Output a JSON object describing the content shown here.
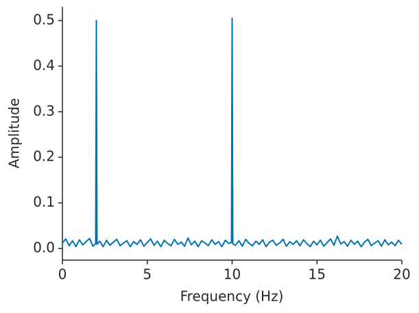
{
  "chart_data": {
    "type": "line",
    "xlabel": "Frequency (Hz)",
    "ylabel": "Amplitude",
    "color": "#0173b2",
    "xlim": [
      0,
      20
    ],
    "ylim": [
      -0.0256,
      0.53
    ],
    "xticks": [
      0,
      5,
      10,
      15,
      20
    ],
    "yticks": [
      {
        "value": 0,
        "label": "0.0"
      },
      0.1,
      0.2,
      0.3,
      0.4,
      0.5
    ],
    "x": [
      0,
      0.2,
      0.4,
      0.6,
      0.8,
      1,
      1.2,
      1.4,
      1.6,
      1.8,
      1.96,
      2,
      2.04,
      2.2,
      2.4,
      2.6,
      2.8,
      3,
      3.2,
      3.4,
      3.6,
      3.8,
      4,
      4.2,
      4.4,
      4.6,
      4.8,
      5,
      5.2,
      5.4,
      5.6,
      5.8,
      6,
      6.2,
      6.4,
      6.6,
      6.8,
      7,
      7.2,
      7.4,
      7.6,
      7.8,
      8,
      8.2,
      8.4,
      8.6,
      8.8,
      9,
      9.2,
      9.4,
      9.6,
      9.8,
      9.96,
      10,
      10.04,
      10.2,
      10.4,
      10.6,
      10.8,
      11,
      11.2,
      11.4,
      11.6,
      11.8,
      12,
      12.2,
      12.4,
      12.6,
      12.8,
      13,
      13.2,
      13.4,
      13.6,
      13.8,
      14,
      14.2,
      14.4,
      14.6,
      14.8,
      15,
      15.2,
      15.4,
      15.6,
      15.8,
      16,
      16.2,
      16.4,
      16.6,
      16.8,
      17,
      17.2,
      17.4,
      17.6,
      17.8,
      18,
      18.2,
      18.4,
      18.6,
      18.8,
      19,
      19.2,
      19.4,
      19.6,
      19.8,
      20
    ],
    "values": [
      0.012,
      0.021,
      0.006,
      0.017,
      0.004,
      0.019,
      0.008,
      0.015,
      0.022,
      0.005,
      0.011,
      0.5,
      0.009,
      0.016,
      0.004,
      0.018,
      0.007,
      0.014,
      0.02,
      0.006,
      0.012,
      0.017,
      0.004,
      0.015,
      0.009,
      0.019,
      0.005,
      0.013,
      0.021,
      0.007,
      0.016,
      0.004,
      0.018,
      0.011,
      0.006,
      0.02,
      0.009,
      0.014,
      0.005,
      0.023,
      0.008,
      0.016,
      0.004,
      0.017,
      0.012,
      0.006,
      0.019,
      0.009,
      0.015,
      0.004,
      0.018,
      0.011,
      0.013,
      0.505,
      0.01,
      0.007,
      0.017,
      0.005,
      0.02,
      0.011,
      0.006,
      0.016,
      0.009,
      0.019,
      0.004,
      0.014,
      0.018,
      0.007,
      0.012,
      0.02,
      0.005,
      0.015,
      0.009,
      0.017,
      0.006,
      0.019,
      0.011,
      0.004,
      0.016,
      0.008,
      0.018,
      0.005,
      0.013,
      0.021,
      0.007,
      0.027,
      0.01,
      0.015,
      0.005,
      0.018,
      0.009,
      0.016,
      0.004,
      0.014,
      0.02,
      0.006,
      0.012,
      0.017,
      0.005,
      0.019,
      0.008,
      0.014,
      0.006,
      0.018,
      0.009
    ]
  }
}
